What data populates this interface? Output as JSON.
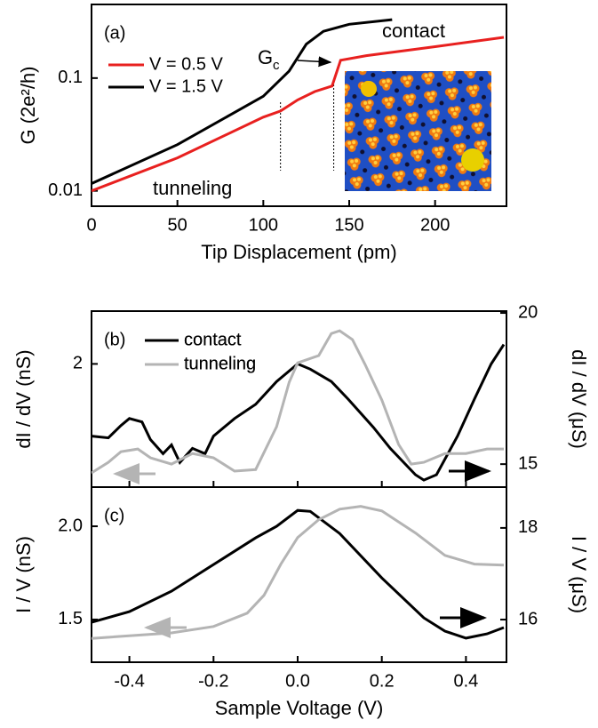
{
  "chart_data": [
    {
      "type": "line",
      "panel_label": "(a)",
      "ylog": true,
      "xlabel": "Tip Displacement (pm)",
      "ylabel": "G (2e²/h)",
      "xlim": [
        0,
        240
      ],
      "xticks": [
        0,
        50,
        100,
        150,
        200
      ],
      "ylim": [
        0.0073,
        0.45
      ],
      "yticks": [
        0.01,
        0.1
      ],
      "annotations": [
        "contact",
        "tunneling"
      ],
      "gc_label": {
        "text": "G",
        "sub": "c"
      },
      "vlines": [
        110,
        141
      ],
      "series": [
        {
          "name": "V = 0.5 V",
          "color": "#e8201f",
          "x": [
            0,
            50,
            100,
            110,
            120,
            130,
            140,
            145,
            160,
            200,
            240
          ],
          "values": [
            0.01,
            0.0196,
            0.045,
            0.051,
            0.064,
            0.076,
            0.085,
            0.144,
            0.158,
            0.19,
            0.23
          ]
        },
        {
          "name": "V = 1.5 V",
          "color": "#000000",
          "x": [
            0,
            50,
            100,
            115,
            125,
            135,
            150,
            175
          ],
          "values": [
            0.0116,
            0.0257,
            0.069,
            0.115,
            0.2,
            0.26,
            0.3,
            0.33
          ]
        }
      ]
    },
    {
      "type": "line",
      "panel_label": "(b)",
      "ylabel": "dI / dV (nS)",
      "y2label": "dI / dV (μS)",
      "xlim": [
        -0.49,
        0.49
      ],
      "xticks": [
        -0.4,
        -0.2,
        0,
        0.2,
        0.4
      ],
      "show_xtick_labels": false,
      "ylim": [
        1.3,
        2.3
      ],
      "yticks": [
        2
      ],
      "y2lim": [
        14.24,
        20.06
      ],
      "y2ticks": [
        15,
        20
      ],
      "series": [
        {
          "name": "contact",
          "color": "#000000",
          "x": [
            -0.49,
            -0.45,
            -0.42,
            -0.4,
            -0.37,
            -0.35,
            -0.32,
            -0.3,
            -0.28,
            -0.25,
            -0.22,
            -0.2,
            -0.15,
            -0.1,
            -0.05,
            0,
            0.03,
            0.08,
            0.12,
            0.18,
            0.22,
            0.28,
            0.3,
            0.33,
            0.38,
            0.42,
            0.46,
            0.49
          ],
          "values": [
            1.59,
            1.58,
            1.65,
            1.69,
            1.67,
            1.57,
            1.49,
            1.54,
            1.44,
            1.52,
            1.49,
            1.59,
            1.69,
            1.77,
            1.9,
            2.0,
            1.97,
            1.9,
            1.8,
            1.64,
            1.52,
            1.37,
            1.34,
            1.37,
            1.59,
            1.8,
            2.0,
            2.11
          ]
        },
        {
          "name": "tunneling",
          "color": "#b4b4b4",
          "axis": "y2",
          "x": [
            -0.49,
            -0.45,
            -0.42,
            -0.38,
            -0.35,
            -0.3,
            -0.25,
            -0.2,
            -0.15,
            -0.1,
            -0.05,
            -0.02,
            0,
            0.05,
            0.08,
            0.1,
            0.13,
            0.16,
            0.2,
            0.24,
            0.27,
            0.3,
            0.35,
            0.4,
            0.45,
            0.49
          ],
          "values": [
            14.71,
            15.06,
            15.41,
            15.5,
            15.21,
            15.0,
            15.35,
            15.21,
            14.77,
            14.82,
            16.24,
            17.71,
            18.35,
            18.59,
            19.32,
            19.41,
            19.12,
            18.3,
            17.12,
            15.65,
            15.0,
            15.06,
            15.35,
            15.35,
            15.5,
            15.5
          ]
        }
      ]
    },
    {
      "type": "line",
      "panel_label": "(c)",
      "xlabel": "Sample Voltage (V)",
      "ylabel": "I / V (nS)",
      "y2label": "I / V (μS)",
      "xlim": [
        -0.49,
        0.49
      ],
      "xticks": [
        -0.4,
        -0.2,
        {
          "value": 0,
          "label": "0.0"
        },
        0.2,
        0.4
      ],
      "ylim": [
        1.271,
        2.21
      ],
      "yticks": [
        {
          "value": 1.5,
          "label": "1.5"
        },
        {
          "value": 2,
          "label": "2.0"
        }
      ],
      "y2lim": [
        15.07,
        18.89
      ],
      "y2ticks": [
        16,
        18
      ],
      "series": [
        {
          "name": "contact",
          "color": "#000000",
          "x": [
            -0.49,
            -0.4,
            -0.3,
            -0.2,
            -0.1,
            -0.05,
            0,
            0.03,
            0.1,
            0.2,
            0.3,
            0.35,
            0.4,
            0.45,
            0.49
          ],
          "values": [
            1.485,
            1.542,
            1.652,
            1.795,
            1.938,
            2.0,
            2.085,
            2.08,
            1.961,
            1.723,
            1.509,
            1.438,
            1.4,
            1.423,
            1.457
          ]
        },
        {
          "name": "tunneling",
          "color": "#b4b4b4",
          "axis": "y2",
          "x": [
            -0.49,
            -0.3,
            -0.2,
            -0.12,
            -0.08,
            -0.04,
            0,
            0.05,
            0.1,
            0.15,
            0.2,
            0.28,
            0.35,
            0.42,
            0.49
          ],
          "values": [
            15.59,
            15.71,
            15.85,
            16.14,
            16.53,
            17.21,
            17.79,
            18.18,
            18.41,
            18.47,
            18.37,
            17.89,
            17.4,
            17.21,
            17.19
          ]
        }
      ]
    }
  ]
}
